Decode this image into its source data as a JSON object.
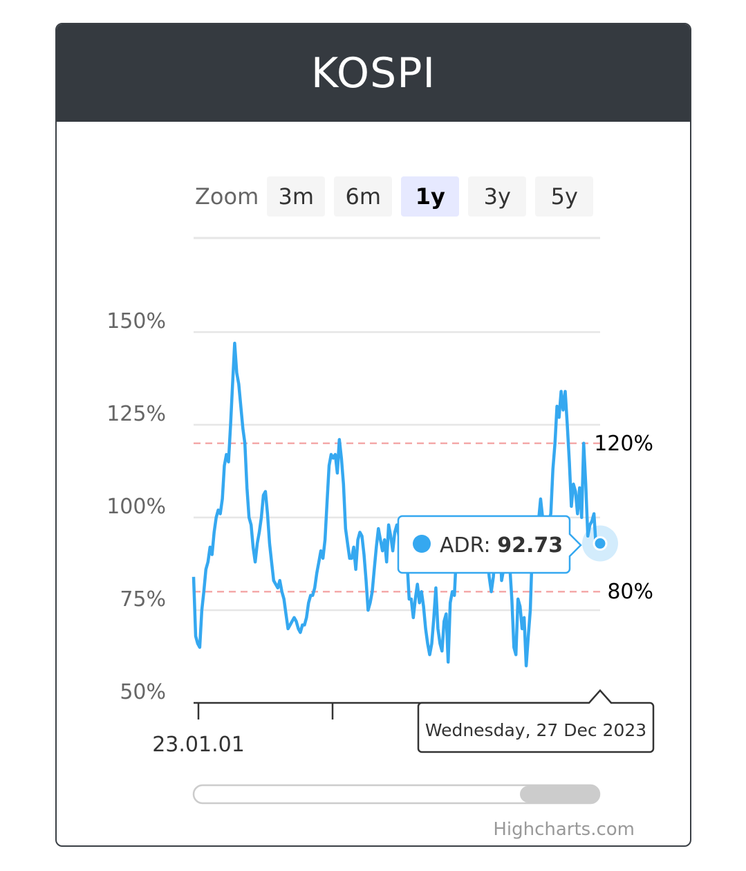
{
  "header": {
    "title": "KOSPI"
  },
  "zoom": {
    "label": "Zoom",
    "buttons": [
      "3m",
      "6m",
      "1y",
      "3y",
      "5y"
    ],
    "selected": "1y"
  },
  "tooltip": {
    "series_name": "ADR",
    "value": "92.73",
    "date": "Wednesday, 27 Dec 2023"
  },
  "credits": "Highcharts.com",
  "colors": {
    "series": "#35a8f0",
    "plotline": "#f4a9a9",
    "header": "#353a40"
  },
  "chart_data": {
    "type": "line",
    "title": "KOSPI",
    "ylabel": "",
    "ylim": [
      50,
      150
    ],
    "yticks": [
      "150%",
      "125%",
      "100%",
      "75%",
      "50%"
    ],
    "xticks": [
      "23.01.01"
    ],
    "plot_lines": [
      {
        "value": 120,
        "label": "120%"
      },
      {
        "value": 80,
        "label": "80%"
      }
    ],
    "series": [
      {
        "name": "ADR",
        "values": [
          84,
          68,
          66,
          65,
          75,
          80,
          86,
          88,
          92,
          90,
          96,
          100,
          102,
          101,
          105,
          114,
          117,
          115,
          125,
          136,
          147,
          139,
          136,
          130,
          124,
          120,
          108,
          100,
          98,
          92,
          88,
          93,
          96,
          100,
          106,
          107,
          101,
          93,
          88,
          83,
          82,
          81,
          83,
          80,
          78,
          74,
          70,
          71,
          72,
          73,
          72,
          70,
          69,
          71,
          71,
          73,
          77,
          79,
          79,
          81,
          85,
          88,
          91,
          89,
          94,
          104,
          114,
          117,
          116,
          117,
          112,
          121,
          116,
          109,
          97,
          93,
          89,
          89,
          92,
          86,
          94,
          96,
          95,
          90,
          83,
          75,
          77,
          80,
          86,
          92,
          97,
          94,
          91,
          94,
          88,
          98,
          95,
          91,
          96,
          98,
          95,
          95,
          93,
          89,
          88,
          78,
          78,
          73,
          78,
          82,
          77,
          80,
          76,
          70,
          66,
          63,
          66,
          73,
          81,
          70,
          66,
          64,
          72,
          74,
          61,
          77,
          80,
          79,
          90,
          89,
          92,
          97,
          91,
          94,
          88,
          92,
          89,
          93,
          93,
          90,
          97,
          91,
          86,
          89,
          84,
          80,
          84,
          92,
          99,
          96,
          83,
          86,
          96,
          98,
          87,
          78,
          65,
          63,
          78,
          76,
          70,
          73,
          60,
          68,
          75,
          92,
          97,
          90,
          99,
          105,
          100,
          93,
          92,
          99,
          101,
          113,
          120,
          130,
          127,
          134,
          129,
          134,
          125,
          115,
          103,
          109,
          107,
          101,
          108,
          100,
          120,
          109,
          95,
          98,
          99,
          101,
          92,
          94,
          93
        ]
      }
    ]
  }
}
